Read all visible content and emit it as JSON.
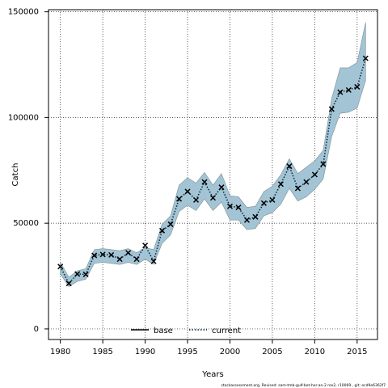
{
  "chart_data": {
    "type": "line",
    "xlabel": "Years",
    "ylabel": "Catch",
    "xlim": [
      1978.6,
      2017.4
    ],
    "ylim": [
      -5000,
      151000
    ],
    "xticks": [
      1980,
      1985,
      1990,
      1995,
      2000,
      2005,
      2010,
      2015
    ],
    "yticks": [
      0,
      50000,
      100000,
      150000
    ],
    "grid": true,
    "legend_position": "bottom-center",
    "legend": [
      {
        "label": "base",
        "style": "solid"
      },
      {
        "label": "current",
        "style": "dotted"
      }
    ],
    "x": [
      1980,
      1981,
      1982,
      1983,
      1984,
      1985,
      1986,
      1987,
      1988,
      1989,
      1990,
      1991,
      1992,
      1993,
      1994,
      1995,
      1996,
      1997,
      1998,
      1999,
      2000,
      2001,
      2002,
      2003,
      2004,
      2005,
      2006,
      2007,
      2008,
      2009,
      2010,
      2011,
      2012,
      2013,
      2014,
      2015,
      2016
    ],
    "series": [
      {
        "name": "current",
        "values": [
          29500,
          21500,
          26000,
          25800,
          34800,
          35200,
          35000,
          33000,
          36000,
          33000,
          39500,
          32000,
          46500,
          49500,
          61500,
          65000,
          61000,
          69500,
          62000,
          67000,
          58000,
          57500,
          51500,
          53000,
          59500,
          61000,
          68500,
          77000,
          66500,
          69500,
          73000,
          78000,
          104000,
          112000,
          113000,
          114500,
          128000
        ],
        "band_lower": [
          26000,
          20000,
          22500,
          23500,
          31000,
          31500,
          31000,
          30500,
          31500,
          30500,
          33000,
          30500,
          40500,
          44500,
          55500,
          58500,
          56000,
          61500,
          56000,
          60000,
          51500,
          51500,
          47000,
          47500,
          53500,
          55000,
          59000,
          66500,
          60500,
          62500,
          66000,
          71000,
          91000,
          102000,
          102500,
          104500,
          117500
        ],
        "band_upper": [
          31500,
          24500,
          27500,
          28500,
          37500,
          38000,
          37500,
          37000,
          38000,
          36000,
          38500,
          37500,
          49500,
          53500,
          68000,
          71500,
          69000,
          74000,
          68000,
          73500,
          63000,
          62500,
          57500,
          58000,
          65000,
          67500,
          73000,
          80500,
          73500,
          76500,
          79500,
          84500,
          109000,
          123500,
          123500,
          126000,
          145000
        ]
      }
    ],
    "footnote": "stockassessment.org, Revised: sam-tmb-gulf-bot-her-an-2 rex2, r10069 , git: ecd9e6362f7"
  }
}
